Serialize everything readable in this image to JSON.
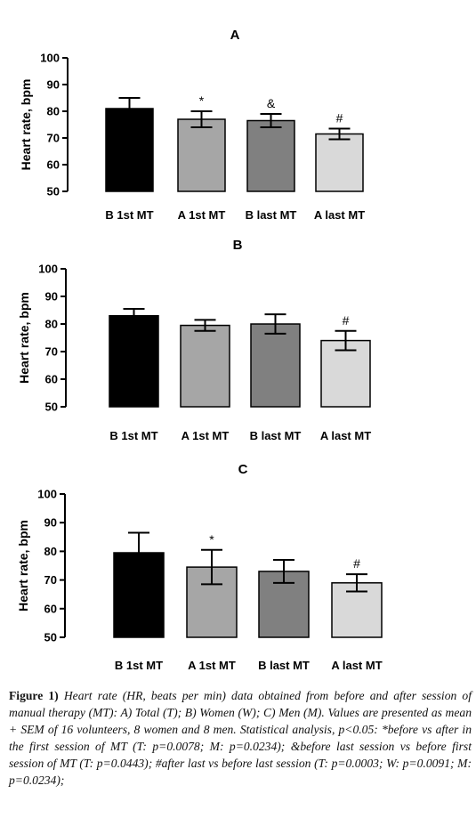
{
  "chart_data": [
    {
      "type": "bar",
      "title": "A",
      "ylabel": "Heart rate, bpm",
      "ylim": [
        50,
        100
      ],
      "yticks": [
        "50",
        "60",
        "70",
        "80",
        "90",
        "100"
      ],
      "categories": [
        "B 1st MT",
        "A 1st MT",
        "B last MT",
        "A last MT"
      ],
      "values": [
        81,
        77,
        76.5,
        71.5
      ],
      "sem": [
        4,
        3,
        2.5,
        2
      ],
      "annotations": [
        "",
        "*",
        "&",
        "#"
      ],
      "colors": [
        "#000000",
        "#a6a6a6",
        "#808080",
        "#d9d9d9"
      ]
    },
    {
      "type": "bar",
      "title": "B",
      "ylabel": "Heart rate, bpm",
      "ylim": [
        50,
        100
      ],
      "yticks": [
        "50",
        "60",
        "70",
        "80",
        "90",
        "100"
      ],
      "categories": [
        "B 1st MT",
        "A 1st MT",
        "B last MT",
        "A last MT"
      ],
      "values": [
        83,
        79.5,
        80,
        74
      ],
      "sem": [
        2.5,
        2,
        3.5,
        3.5
      ],
      "annotations": [
        "",
        "",
        "",
        "#"
      ],
      "colors": [
        "#000000",
        "#a6a6a6",
        "#808080",
        "#d9d9d9"
      ]
    },
    {
      "type": "bar",
      "title": "C",
      "ylabel": "Heart rate, bpm",
      "ylim": [
        50,
        100
      ],
      "yticks": [
        "50",
        "60",
        "70",
        "80",
        "90",
        "100"
      ],
      "categories": [
        "B 1st MT",
        "A 1st MT",
        "B last MT",
        "A last MT"
      ],
      "values": [
        79.5,
        74.5,
        73,
        69
      ],
      "sem": [
        7,
        6,
        4,
        3
      ],
      "annotations": [
        "",
        "*",
        "",
        "#"
      ],
      "colors": [
        "#000000",
        "#a6a6a6",
        "#808080",
        "#d9d9d9"
      ]
    }
  ],
  "caption": {
    "label": "Figure 1)",
    "text": "Heart rate (HR, beats per min) data obtained from before and after session of manual therapy (MT): A) Total (T); B) Women (W); C) Men (M). Values are presented as mean + SEM of 16 volunteers, 8 women and 8 men. Statistical analysis, p<0.05: *before vs after in the first session of MT (T: p=0.0078; M: p=0.0234); &before last session vs before first session of MT (T: p=0.0443); #after last vs before last session (T: p=0.0003; W: p=0.0091; M: p=0.0234);"
  }
}
